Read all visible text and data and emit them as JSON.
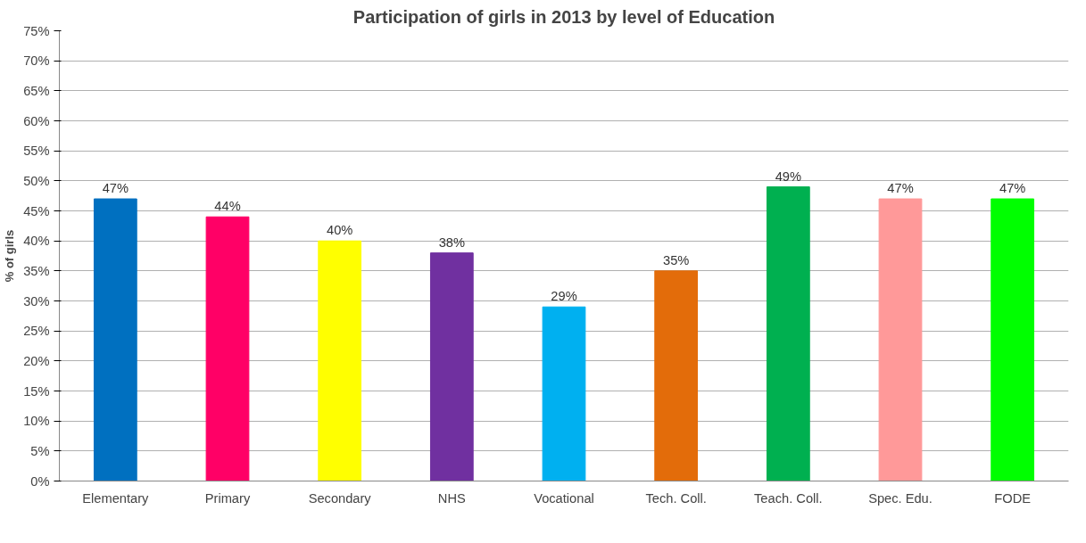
{
  "chart_data": {
    "type": "bar",
    "title": "Participation of girls in 2013 by level of Education",
    "ylabel": "% of girls",
    "categories": [
      "Elementary",
      "Primary",
      "Secondary",
      "NHS",
      "Vocational",
      "Tech. Coll.",
      "Teach. Coll.",
      "Spec. Edu.",
      "FODE"
    ],
    "values": [
      47,
      44,
      40,
      38,
      29,
      35,
      49,
      47,
      47
    ],
    "colors": [
      "#0070c0",
      "#ff0066",
      "#ffff00",
      "#7030a0",
      "#00b0f0",
      "#e36c0a",
      "#00b050",
      "#ff9999",
      "#00ff00"
    ],
    "ylim": [
      0,
      75
    ],
    "yticks": [
      {
        "value": 0,
        "label": "0%"
      },
      {
        "value": 5,
        "label": "5%"
      },
      {
        "value": 10,
        "label": "10%"
      },
      {
        "value": 15,
        "label": "15%"
      },
      {
        "value": 20,
        "label": "20%"
      },
      {
        "value": 25,
        "label": "25%"
      },
      {
        "value": 30,
        "label": "30%"
      },
      {
        "value": 35,
        "label": "35%"
      },
      {
        "value": 40,
        "label": "40%"
      },
      {
        "value": 45,
        "label": "45%"
      },
      {
        "value": 50,
        "label": "50%"
      },
      {
        "value": 55,
        "label": "55%"
      },
      {
        "value": 60,
        "label": "60%"
      },
      {
        "value": 65,
        "label": "65%"
      },
      {
        "value": 70,
        "label": "70%"
      },
      {
        "value": 75,
        "label": "75%"
      }
    ],
    "value_labels": [
      "47%",
      "44%",
      "40%",
      "38%",
      "29%",
      "35%",
      "49%",
      "47%",
      "47%"
    ],
    "grid": "y"
  }
}
